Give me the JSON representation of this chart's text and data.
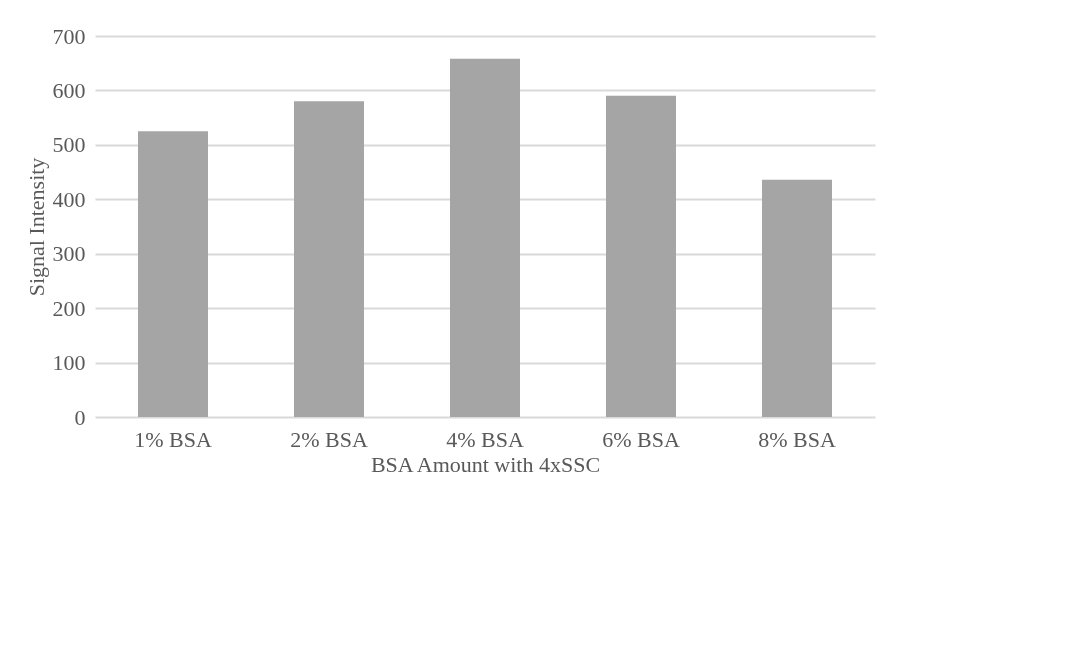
{
  "chart_data": {
    "type": "bar",
    "xlabel": "BSA Amount with 4xSSC",
    "ylabel": "Signal Intensity",
    "categories": [
      "1% BSA",
      "2% BSA",
      "4% BSA",
      "6% BSA",
      "8% BSA"
    ],
    "values": [
      525,
      580,
      658,
      590,
      436
    ],
    "color": "#a5a5a5",
    "ylim": [
      0,
      700
    ],
    "yticks": [
      0,
      100,
      200,
      300,
      400,
      500,
      600,
      700
    ],
    "grid": "y"
  }
}
